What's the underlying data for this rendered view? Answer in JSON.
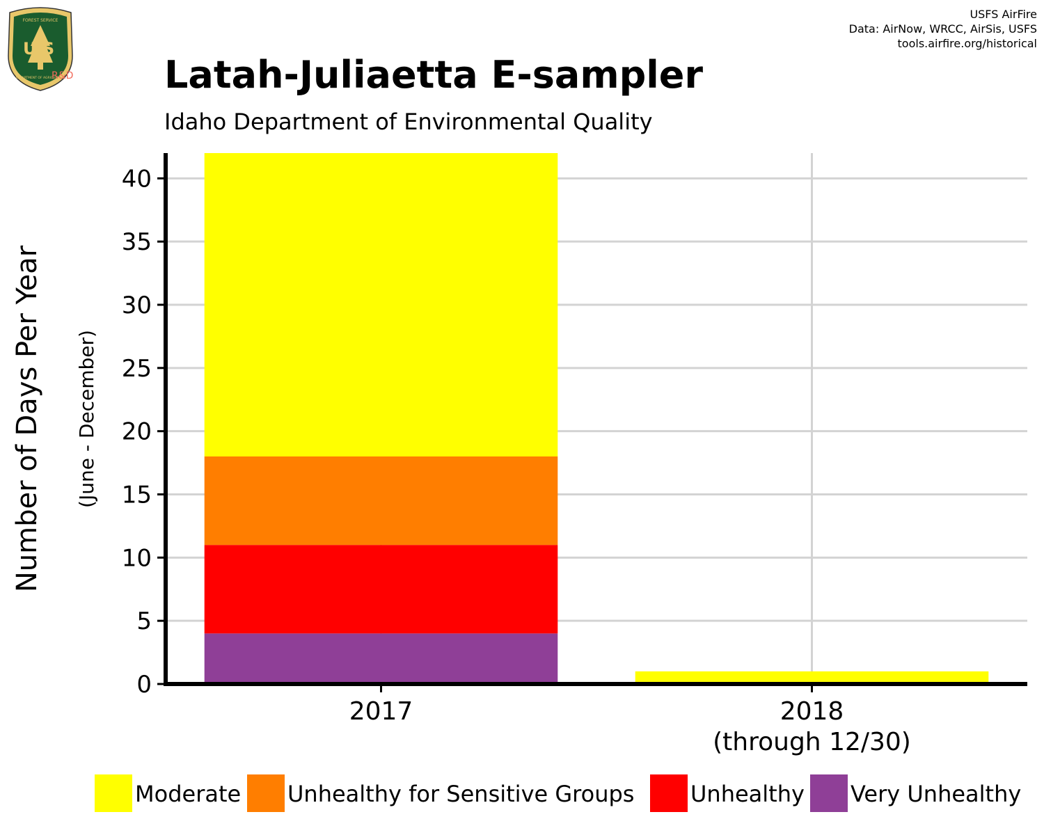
{
  "credits": {
    "line1": "USFS AirFire",
    "line2": "Data: AirNow, WRCC, AirSis, USFS",
    "line3": "tools.airfire.org/historical"
  },
  "logo": {
    "icon": "usfs-shield-logo",
    "top_text": "FOREST SERVICE",
    "center_text": "U S",
    "bottom_text": "DEPARTMENT OF AGRICULTURE",
    "badge": "R&D"
  },
  "chart_data": {
    "type": "bar",
    "stacked": true,
    "title": "Latah-Juliaetta E-sampler",
    "subtitle": "Idaho Department of Environmental Quality",
    "ylabel": "Number of Days Per Year",
    "ylabel_sub": "(June - December)",
    "xlabel": "",
    "categories": [
      "2017",
      "2018"
    ],
    "category_sublabels": [
      "",
      "(through 12/30)"
    ],
    "ylim": [
      0,
      42
    ],
    "yticks": [
      0,
      5,
      10,
      15,
      20,
      25,
      30,
      35,
      40
    ],
    "grid": true,
    "legend_position": "bottom",
    "series": [
      {
        "name": "Very Unhealthy",
        "color": "#8F3F97",
        "values": [
          4,
          0
        ]
      },
      {
        "name": "Unhealthy",
        "color": "#FF0000",
        "values": [
          7,
          0
        ]
      },
      {
        "name": "Unhealthy for Sensitive Groups",
        "color": "#FF7E00",
        "values": [
          7,
          0
        ]
      },
      {
        "name": "Moderate",
        "color": "#FFFF00",
        "values": [
          24,
          1
        ]
      }
    ],
    "legend_order": [
      "Moderate",
      "Unhealthy for Sensitive Groups",
      "Unhealthy",
      "Very Unhealthy"
    ]
  }
}
